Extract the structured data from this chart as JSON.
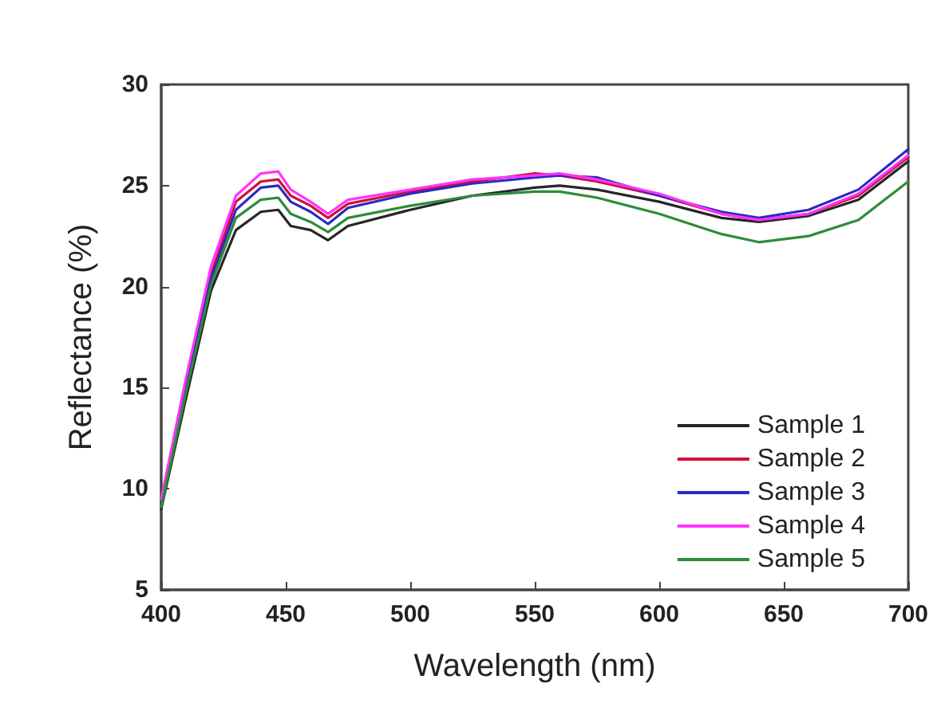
{
  "chart_data": {
    "type": "line",
    "xlabel": "Wavelength (nm)",
    "ylabel": "Reflectance (%)",
    "xlim": [
      400,
      700
    ],
    "xticks": [
      400,
      450,
      500,
      550,
      600,
      650,
      700
    ],
    "ylim": [
      5,
      30
    ],
    "yticks": [
      5,
      10,
      15,
      20,
      25,
      30
    ],
    "grid": false,
    "legend": "bottom right",
    "marker": "none",
    "line_style": "solid",
    "x": [
      400,
      410,
      420,
      430,
      440,
      447,
      452,
      460,
      467,
      475,
      500,
      525,
      550,
      560,
      575,
      600,
      625,
      640,
      660,
      680,
      700
    ],
    "series": [
      {
        "name": "Sample 1",
        "color": "#262626",
        "values": [
          9,
          14.5,
          19.8,
          22.8,
          23.7,
          23.8,
          23,
          22.8,
          22.3,
          23,
          23.8,
          24.5,
          24.9,
          25,
          24.8,
          24.2,
          23.4,
          23.2,
          23.5,
          24.3,
          26.2
        ]
      },
      {
        "name": "Sample 2",
        "color": "#d0103a",
        "values": [
          9.3,
          15.2,
          20.6,
          24.2,
          25.2,
          25.3,
          24.5,
          24,
          23.4,
          24.1,
          24.7,
          25.2,
          25.6,
          25.5,
          25.2,
          24.5,
          23.6,
          23.3,
          23.6,
          24.5,
          26.4
        ]
      },
      {
        "name": "Sample 3",
        "color": "#2a2ac0",
        "values": [
          9.2,
          15,
          20.4,
          23.8,
          24.9,
          25,
          24.2,
          23.7,
          23.1,
          23.9,
          24.6,
          25.1,
          25.4,
          25.5,
          25.4,
          24.5,
          23.7,
          23.4,
          23.8,
          24.8,
          26.8
        ]
      },
      {
        "name": "Sample 4",
        "color": "#ff33ff",
        "values": [
          9.5,
          15.5,
          21,
          24.5,
          25.6,
          25.7,
          24.8,
          24.2,
          23.6,
          24.3,
          24.8,
          25.3,
          25.5,
          25.6,
          25.3,
          24.6,
          23.6,
          23.3,
          23.6,
          24.6,
          26.5
        ]
      },
      {
        "name": "Sample 5",
        "color": "#2e8b3a",
        "values": [
          9.1,
          14.8,
          20.1,
          23.4,
          24.3,
          24.4,
          23.6,
          23.2,
          22.7,
          23.4,
          24,
          24.5,
          24.7,
          24.7,
          24.4,
          23.6,
          22.6,
          22.2,
          22.5,
          23.3,
          25.2
        ]
      }
    ]
  }
}
